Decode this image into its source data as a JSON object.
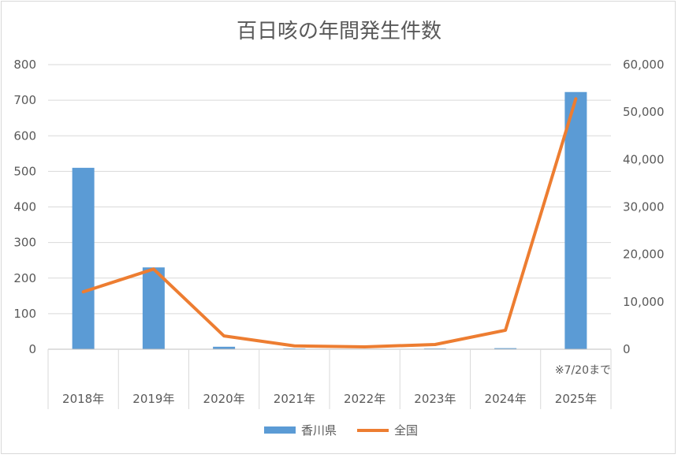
{
  "chart_data": {
    "type": "bar",
    "title": "百日咳の年間発生件数",
    "categories": [
      "2018年",
      "2019年",
      "2020年",
      "2021年",
      "2022年",
      "2023年",
      "2024年",
      "2025年"
    ],
    "series": [
      {
        "name": "香川県",
        "type": "bar",
        "axis": "left",
        "color": "#5b9bd5",
        "values": [
          510,
          230,
          7,
          2,
          1,
          2,
          3,
          723
        ]
      },
      {
        "name": "全国",
        "type": "line",
        "axis": "right",
        "color": "#ed7d31",
        "values": [
          12100,
          16900,
          2800,
          700,
          500,
          1000,
          4000,
          52800
        ]
      }
    ],
    "y_left": {
      "min": 0,
      "max": 800,
      "step": 100,
      "tick_labels": [
        "0",
        "100",
        "200",
        "300",
        "400",
        "500",
        "600",
        "700",
        "800"
      ]
    },
    "y_right": {
      "min": 0,
      "max": 60000,
      "step": 10000,
      "tick_labels": [
        "0",
        "10,000",
        "20,000",
        "30,000",
        "40,000",
        "50,000",
        "60,000"
      ]
    },
    "grid": true,
    "legend_position": "bottom",
    "annotation": "※7/20まで"
  }
}
